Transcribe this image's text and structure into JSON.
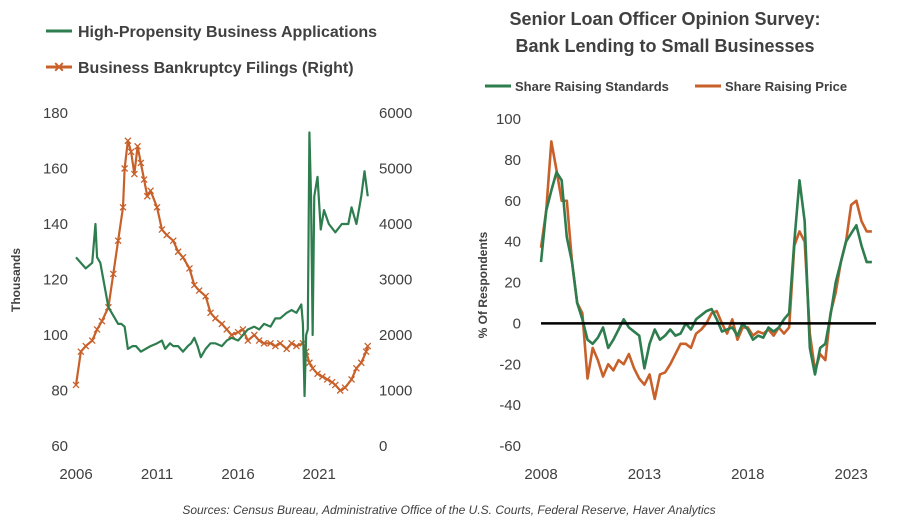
{
  "colors": {
    "green": "#2e7d4f",
    "orange": "#c8602a",
    "zero_line": "#000000",
    "text": "#404040"
  },
  "footer": {
    "source": "Sources: Census Bureau, Administrative Office of the U.S. Courts, Federal Reserve, Haver Analytics"
  },
  "chart_data": [
    {
      "type": "line",
      "title": "",
      "legend": [
        "High-Propensity Business Applications",
        "Business Bankruptcy Filings (Right)"
      ],
      "legend_placement": "top-left",
      "grid": false,
      "xlabel": "",
      "ylabel": "Thousands",
      "xlim": [
        2006,
        2024.2
      ],
      "ylim": [
        60,
        180
      ],
      "y2lim": [
        0,
        6000
      ],
      "x_ticks": [
        "2006",
        "2011",
        "2016",
        "2021"
      ],
      "y_ticks": [
        "60",
        "80",
        "100",
        "120",
        "140",
        "160",
        "180"
      ],
      "y2_ticks": [
        "0",
        "1000",
        "2000",
        "3000",
        "4000",
        "5000",
        "6000"
      ],
      "series": [
        {
          "name": "High-Propensity Business Applications",
          "axis": "left",
          "marker": "none",
          "x": [
            2006.0,
            2006.3,
            2006.6,
            2007.0,
            2007.2,
            2007.3,
            2007.5,
            2008.0,
            2008.4,
            2008.6,
            2008.8,
            2009.0,
            2009.2,
            2009.5,
            2009.7,
            2010.0,
            2010.3,
            2010.6,
            2011.0,
            2011.3,
            2011.5,
            2011.8,
            2012.0,
            2012.3,
            2012.6,
            2012.9,
            2013.1,
            2013.3,
            2013.5,
            2013.7,
            2014.0,
            2014.3,
            2014.6,
            2015.0,
            2015.3,
            2015.6,
            2016.0,
            2016.3,
            2016.6,
            2017.0,
            2017.3,
            2017.6,
            2018.0,
            2018.3,
            2018.6,
            2019.0,
            2019.3,
            2019.6,
            2019.8,
            2019.9,
            2020.0,
            2020.1,
            2020.2,
            2020.3,
            2020.4,
            2020.5,
            2020.6,
            2020.7,
            2020.9,
            2021.1,
            2021.3,
            2021.6,
            2022.0,
            2022.4,
            2022.8,
            2023.0,
            2023.3,
            2023.6,
            2023.8,
            2024.0
          ],
          "y": [
            128,
            126,
            124,
            126,
            140,
            128,
            126,
            110,
            106,
            104,
            104,
            103,
            95,
            96,
            96,
            94,
            95,
            96,
            97,
            98,
            95,
            97,
            96,
            96,
            94,
            96,
            97,
            99,
            96,
            92,
            95,
            97,
            97,
            96,
            98,
            99,
            98,
            100,
            102,
            103,
            102,
            104,
            103,
            106,
            106,
            108,
            109,
            108,
            110,
            111,
            104,
            78,
            100,
            102,
            173,
            150,
            100,
            150,
            157,
            138,
            145,
            140,
            137,
            140,
            140,
            146,
            140,
            150,
            159,
            150
          ]
        },
        {
          "name": "Business Bankruptcy Filings (Right)",
          "axis": "right",
          "marker": "x",
          "x": [
            2006.0,
            2006.3,
            2006.6,
            2007.0,
            2007.3,
            2007.6,
            2008.0,
            2008.3,
            2008.6,
            2008.9,
            2009.0,
            2009.2,
            2009.4,
            2009.6,
            2009.8,
            2010.0,
            2010.2,
            2010.4,
            2010.6,
            2011.0,
            2011.3,
            2011.6,
            2012.0,
            2012.3,
            2012.6,
            2013.0,
            2013.3,
            2013.6,
            2014.0,
            2014.3,
            2014.6,
            2015.0,
            2015.3,
            2015.6,
            2016.0,
            2016.3,
            2016.6,
            2017.0,
            2017.3,
            2017.6,
            2018.0,
            2018.3,
            2018.6,
            2019.0,
            2019.3,
            2019.6,
            2020.0,
            2020.2,
            2020.4,
            2020.6,
            2020.9,
            2021.2,
            2021.5,
            2021.8,
            2022.0,
            2022.3,
            2022.6,
            2023.0,
            2023.3,
            2023.6,
            2023.9,
            2024.0
          ],
          "y": [
            1100,
            1700,
            1800,
            1900,
            2100,
            2250,
            2500,
            3100,
            3700,
            4300,
            5000,
            5500,
            5300,
            4900,
            5400,
            5100,
            4800,
            4500,
            4600,
            4300,
            3900,
            3800,
            3700,
            3500,
            3400,
            3200,
            2900,
            2800,
            2700,
            2400,
            2300,
            2200,
            2100,
            2000,
            2050,
            2100,
            1900,
            2000,
            1900,
            1850,
            1850,
            1800,
            1850,
            1750,
            1850,
            1800,
            1850,
            1700,
            1500,
            1400,
            1300,
            1250,
            1200,
            1150,
            1100,
            1000,
            1050,
            1200,
            1400,
            1500,
            1700,
            1800
          ]
        }
      ]
    },
    {
      "type": "line",
      "title": [
        "Senior Loan Officer Opinion Survey:",
        "Bank Lending to Small Businesses"
      ],
      "legend": [
        "Share Raising Standards",
        "Share Raising Price"
      ],
      "legend_placement": "top",
      "grid": false,
      "xlabel": "",
      "ylabel": "% Of Respondents",
      "xlim": [
        2008,
        2024.2
      ],
      "ylim": [
        -60,
        100
      ],
      "x_ticks": [
        "2008",
        "2013",
        "2018",
        "2023"
      ],
      "y_ticks": [
        "-60",
        "-40",
        "-20",
        "0",
        "20",
        "40",
        "60",
        "80",
        "100"
      ],
      "series": [
        {
          "name": "Share Raising Standards",
          "x": [
            2008.0,
            2008.25,
            2008.5,
            2008.75,
            2009.0,
            2009.25,
            2009.5,
            2009.75,
            2010.0,
            2010.25,
            2010.5,
            2010.75,
            2011.0,
            2011.25,
            2011.5,
            2011.75,
            2012.0,
            2012.25,
            2012.5,
            2012.75,
            2013.0,
            2013.25,
            2013.5,
            2013.75,
            2014.0,
            2014.25,
            2014.5,
            2014.75,
            2015.0,
            2015.25,
            2015.5,
            2015.75,
            2016.0,
            2016.25,
            2016.5,
            2016.75,
            2017.0,
            2017.25,
            2017.5,
            2017.75,
            2018.0,
            2018.25,
            2018.5,
            2018.75,
            2019.0,
            2019.25,
            2019.5,
            2019.75,
            2020.0,
            2020.25,
            2020.5,
            2020.75,
            2021.0,
            2021.25,
            2021.5,
            2021.75,
            2022.0,
            2022.25,
            2022.5,
            2022.75,
            2023.0,
            2023.25,
            2023.5,
            2023.75,
            2024.0
          ],
          "y": [
            30,
            55,
            65,
            74,
            70,
            42,
            30,
            10,
            2,
            -8,
            -10,
            -7,
            -2,
            -12,
            -8,
            -3,
            2,
            -2,
            -4,
            -6,
            -22,
            -10,
            -3,
            -8,
            -6,
            -3,
            -6,
            -5,
            0,
            -3,
            2,
            4,
            6,
            7,
            2,
            -4,
            -3,
            -2,
            -6,
            0,
            -3,
            -8,
            -6,
            -7,
            -2,
            -4,
            -2,
            2,
            5,
            40,
            70,
            50,
            -12,
            -25,
            -12,
            -10,
            4,
            20,
            30,
            40,
            44,
            48,
            38,
            30,
            30
          ]
        },
        {
          "name": "Share Raising Price",
          "x": [
            2008.0,
            2008.25,
            2008.5,
            2008.75,
            2009.0,
            2009.25,
            2009.5,
            2009.75,
            2010.0,
            2010.25,
            2010.5,
            2010.75,
            2011.0,
            2011.25,
            2011.5,
            2011.75,
            2012.0,
            2012.25,
            2012.5,
            2012.75,
            2013.0,
            2013.25,
            2013.5,
            2013.75,
            2014.0,
            2014.25,
            2014.5,
            2014.75,
            2015.0,
            2015.25,
            2015.5,
            2015.75,
            2016.0,
            2016.25,
            2016.5,
            2016.75,
            2017.0,
            2017.25,
            2017.5,
            2017.75,
            2018.0,
            2018.25,
            2018.5,
            2018.75,
            2019.0,
            2019.25,
            2019.5,
            2019.75,
            2020.0,
            2020.25,
            2020.5,
            2020.75,
            2021.0,
            2021.25,
            2021.5,
            2021.75,
            2022.0,
            2022.25,
            2022.5,
            2022.75,
            2023.0,
            2023.25,
            2023.5,
            2023.75,
            2024.0
          ],
          "y": [
            37,
            55,
            89,
            75,
            60,
            60,
            30,
            10,
            5,
            -27,
            -12,
            -18,
            -26,
            -20,
            -23,
            -18,
            -20,
            -15,
            -22,
            -27,
            -30,
            -25,
            -37,
            -25,
            -24,
            -20,
            -15,
            -10,
            -10,
            -12,
            -5,
            -3,
            0,
            5,
            6,
            0,
            -5,
            2,
            -8,
            -2,
            -2,
            -6,
            -4,
            -5,
            -3,
            -6,
            -2,
            -5,
            -2,
            38,
            45,
            40,
            -5,
            -23,
            -15,
            -18,
            5,
            15,
            30,
            40,
            58,
            60,
            50,
            45,
            45
          ]
        }
      ]
    }
  ]
}
